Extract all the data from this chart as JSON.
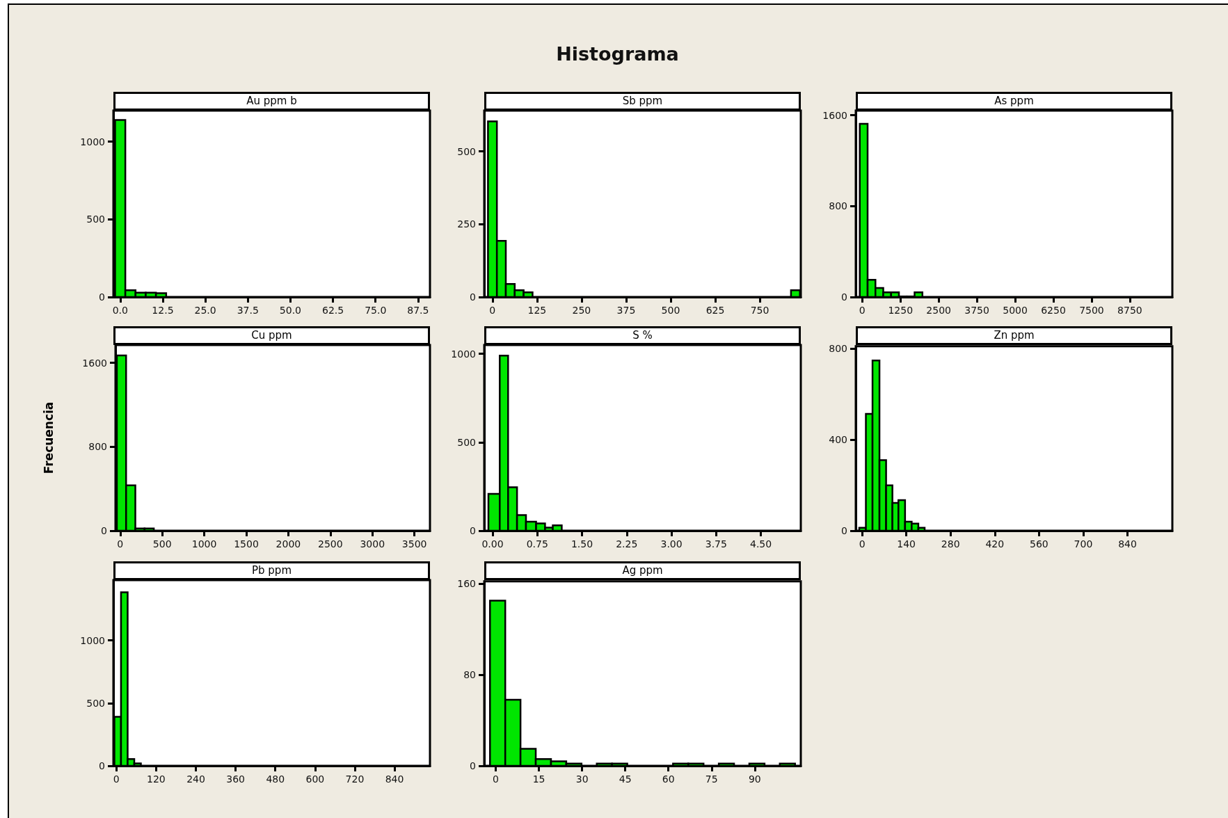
{
  "chart_data": [
    {
      "type": "histogram",
      "title": "Au ppm b",
      "annotations": [
        "Histograma"
      ],
      "color": "#00e600",
      "bins": [
        -1.5,
        1.5,
        4.5,
        7.5,
        10.5,
        13.5
      ],
      "values": [
        1140,
        44,
        28,
        28,
        25
      ],
      "xlim": [
        -2,
        91
      ],
      "ylim": [
        0,
        1200
      ],
      "xticks": [
        {
          "value": 0,
          "label": "0.0"
        },
        12.5,
        {
          "value": 25,
          "label": "25.0"
        },
        37.5,
        {
          "value": 50,
          "label": "50.0"
        },
        62.5,
        {
          "value": 75,
          "label": "75.0"
        },
        87.5
      ],
      "yticks": [
        0,
        500,
        1000
      ]
    },
    {
      "type": "histogram",
      "title": "Sb ppm",
      "color": "#00e600",
      "bins": [
        -12.5,
        12.5,
        37.5,
        62.5,
        87.5,
        112.5,
        137.5,
        162.5,
        187.5,
        212.5,
        237.5,
        262.5,
        287.5,
        312.5,
        337.5,
        362.5,
        387.5,
        412.5,
        437.5,
        462.5,
        487.5,
        512.5,
        537.5,
        562.5,
        587.5,
        612.5,
        637.5,
        662.5,
        687.5,
        712.5,
        737.5,
        762.5,
        787.5,
        812.5,
        837.5,
        862.5
      ],
      "values": [
        603,
        193,
        45,
        23,
        16,
        0,
        0,
        0,
        0,
        0,
        0,
        0,
        0,
        0,
        0,
        0,
        0,
        0,
        0,
        0,
        0,
        0,
        0,
        0,
        0,
        0,
        0,
        0,
        0,
        0,
        0,
        0,
        0,
        0,
        23
      ],
      "xlim": [
        -23,
        865
      ],
      "ylim": [
        0,
        640
      ],
      "xticks": [
        0,
        125,
        250,
        375,
        500,
        625,
        750
      ],
      "yticks": [
        0,
        250,
        500
      ]
    },
    {
      "type": "histogram",
      "title": "As ppm",
      "color": "#00e600",
      "bins": [
        -80,
        176,
        432,
        688,
        944,
        1200,
        1456,
        1712,
        1968
      ],
      "values": [
        1524,
        152,
        79,
        42,
        42,
        5,
        5,
        42
      ],
      "xlim": [
        -211,
        10140
      ],
      "ylim": [
        0,
        1640
      ],
      "xticks": [
        0,
        1250,
        2500,
        3750,
        5000,
        6250,
        7500,
        8750
      ],
      "yticks": [
        0,
        800,
        1600
      ]
    },
    {
      "type": "histogram",
      "title": "Cu ppm",
      "ylabel": "Frecuencia",
      "color": "#00e600",
      "bins": [
        -40,
        70,
        180,
        290,
        400
      ],
      "values": [
        1670,
        433,
        22,
        22
      ],
      "xlim": [
        -56,
        3685
      ],
      "ylim": [
        0,
        1770
      ],
      "xticks": [
        0,
        500,
        1000,
        1500,
        2000,
        2500,
        3000,
        3500
      ],
      "yticks": [
        0,
        800,
        1600
      ]
    },
    {
      "type": "histogram",
      "title": "S %",
      "color": "#00e600",
      "bins": [
        -0.07,
        0.12,
        0.26,
        0.41,
        0.56,
        0.73,
        0.88,
        1.01,
        1.16
      ],
      "values": [
        208,
        990,
        246,
        88,
        51,
        41,
        18,
        30
      ],
      "xlim": [
        -0.14,
        5.17
      ],
      "ylim": [
        0,
        1050
      ],
      "xticks": [
        {
          "value": 0,
          "label": "0.00"
        },
        0.75,
        {
          "value": 1.5,
          "label": "1.50"
        },
        2.25,
        {
          "value": 3,
          "label": "3.00"
        },
        3.75,
        {
          "value": 4.5,
          "label": "4.50"
        }
      ],
      "yticks": [
        0,
        500,
        1000
      ]
    },
    {
      "type": "histogram",
      "title": "Zn ppm",
      "color": "#00e600",
      "bins": [
        -9,
        12,
        33,
        55,
        76,
        96,
        115,
        136,
        157,
        178,
        198
      ],
      "values": [
        13,
        513,
        747,
        310,
        199,
        122,
        134,
        40,
        31,
        13
      ],
      "xlim": [
        -20,
        982
      ],
      "ylim": [
        0,
        810
      ],
      "xticks": [
        0,
        140,
        280,
        420,
        560,
        700,
        840
      ],
      "yticks": [
        0,
        400,
        800
      ]
    },
    {
      "type": "histogram",
      "title": "Pb ppm",
      "color": "#00e600",
      "bins": [
        -6,
        14,
        34,
        54,
        74
      ],
      "values": [
        391,
        1383,
        54,
        19
      ],
      "xlim": [
        -9,
        947
      ],
      "ylim": [
        0,
        1480
      ],
      "xticks": [
        0,
        120,
        240,
        360,
        480,
        600,
        720,
        840
      ],
      "yticks": [
        0,
        500,
        1000
      ]
    },
    {
      "type": "histogram",
      "title": "Ag ppm",
      "color": "#00e600",
      "bins": [
        -2,
        3.3,
        8.6,
        13.9,
        19.2,
        24.5,
        29.8,
        35.1,
        40.4,
        45.7,
        51,
        56.3,
        61.6,
        66.9,
        72.2,
        77.5,
        82.8,
        88.1,
        93.4,
        98.7,
        104
      ],
      "values": [
        145,
        58,
        15,
        6,
        4,
        2,
        0,
        2,
        2,
        0,
        0,
        0,
        2,
        2,
        0,
        2,
        0,
        2,
        0,
        2
      ],
      "xlim": [
        -4,
        106
      ],
      "ylim": [
        0,
        162
      ],
      "xticks": [
        0,
        15,
        30,
        45,
        60,
        75,
        90
      ],
      "yticks": [
        0,
        80,
        160
      ]
    }
  ]
}
